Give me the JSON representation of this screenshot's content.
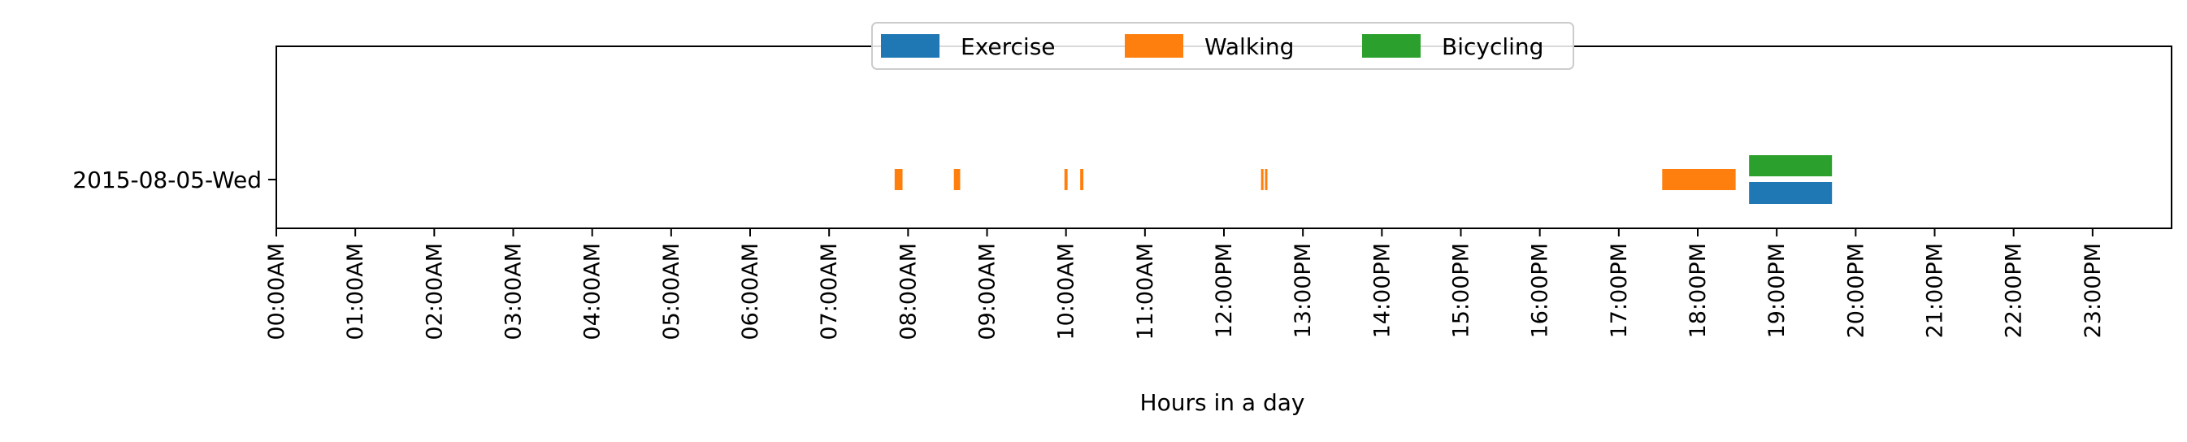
{
  "chart_data": {
    "type": "timeline",
    "xlabel": "Hours in a day",
    "x_tick_labels": [
      "00:00AM",
      "01:00AM",
      "02:00AM",
      "03:00AM",
      "04:00AM",
      "05:00AM",
      "06:00AM",
      "07:00AM",
      "08:00AM",
      "09:00AM",
      "10:00AM",
      "11:00AM",
      "12:00PM",
      "13:00PM",
      "14:00PM",
      "15:00PM",
      "16:00PM",
      "17:00PM",
      "18:00PM",
      "19:00PM",
      "20:00PM",
      "21:00PM",
      "22:00PM",
      "23:00PM"
    ],
    "x_tick_values": [
      0,
      1,
      2,
      3,
      4,
      5,
      6,
      7,
      8,
      9,
      10,
      11,
      12,
      13,
      14,
      15,
      16,
      17,
      18,
      19,
      20,
      21,
      22,
      23
    ],
    "xlim": [
      0,
      24
    ],
    "y_categories": [
      "2015-08-05-Wed"
    ],
    "legend": {
      "placement": "upper center",
      "columns": 3
    },
    "series": [
      {
        "name": "Exercise",
        "color": "#1f77b4",
        "lane": "lower",
        "intervals": [
          [
            18.65,
            19.7
          ]
        ]
      },
      {
        "name": "Walking",
        "color": "#ff7f0e",
        "lane": "center",
        "intervals": [
          [
            7.83,
            7.93
          ],
          [
            8.58,
            8.66
          ],
          [
            9.98,
            10.02
          ],
          [
            10.18,
            10.22
          ],
          [
            12.47,
            12.5
          ],
          [
            12.52,
            12.55
          ],
          [
            17.55,
            18.48
          ]
        ]
      },
      {
        "name": "Bicycling",
        "color": "#2ca02c",
        "lane": "upper",
        "intervals": [
          [
            18.65,
            19.7
          ]
        ]
      }
    ]
  }
}
